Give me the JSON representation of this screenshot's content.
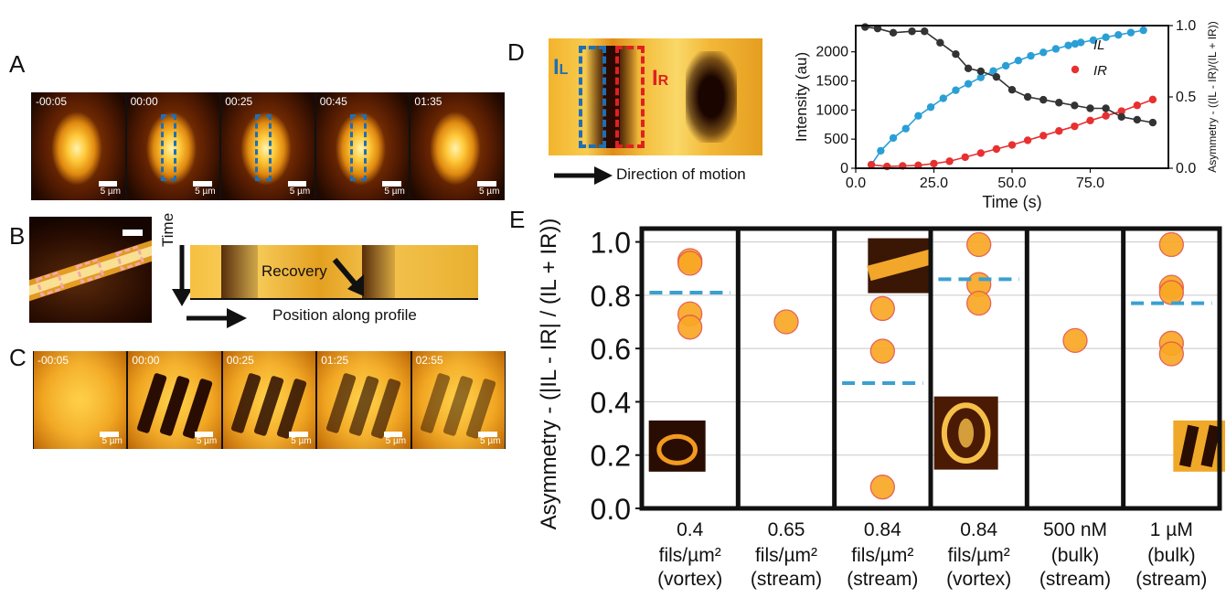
{
  "panels": {
    "A": {
      "label": "A",
      "timestamps": [
        "-00:05",
        "00:00",
        "00:25",
        "00:45",
        "01:35"
      ],
      "scale_label": "5 µm"
    },
    "B": {
      "label": "B",
      "time_label": "Time",
      "recovery_label": "Recovery",
      "position_label": "Position along profile"
    },
    "C": {
      "label": "C",
      "timestamps": [
        "-00:05",
        "00:00",
        "00:25",
        "01:25",
        "02:55"
      ],
      "scale_label": "5 µm"
    },
    "D": {
      "label": "D",
      "il_label": "IL",
      "ir_label": "IR",
      "direction_label": "Direction of motion"
    },
    "E": {
      "label": "E"
    }
  },
  "chart_data": [
    {
      "type": "scatter",
      "panel": "D",
      "xlabel": "Time (s)",
      "ylabel": "Intensity (au)",
      "y2label": "Asymmetry - ((IL - IR)/(IL + IR))",
      "xlim": [
        0,
        100
      ],
      "ylim": [
        0,
        2450
      ],
      "y2lim": [
        0,
        1.0
      ],
      "xticks": [
        0.0,
        25.0,
        50.0,
        75.0
      ],
      "xtick_labels": [
        "0.0",
        "25.0",
        "50.0",
        "75.0"
      ],
      "yticks": [
        0,
        500,
        1000,
        1500,
        2000
      ],
      "y2ticks": [
        0.0,
        0.5,
        1.0
      ],
      "y2tick_labels": [
        "0.0",
        "0.5",
        "1.0"
      ],
      "legend": {
        "position": "top-right",
        "entries": [
          "IL",
          "IR"
        ]
      },
      "series": [
        {
          "name": "IL",
          "axis": "left",
          "color": "#2a9fd6",
          "x": [
            5,
            8,
            12,
            16,
            20,
            24,
            28,
            32,
            36,
            40,
            44,
            48,
            52,
            56,
            60,
            64,
            68,
            72,
            76,
            80,
            84,
            88,
            92
          ],
          "y": [
            60,
            300,
            520,
            680,
            900,
            1050,
            1200,
            1340,
            1450,
            1560,
            1670,
            1760,
            1850,
            1930,
            1990,
            2050,
            2110,
            2160,
            2200,
            2250,
            2290,
            2330,
            2370
          ]
        },
        {
          "name": "IR",
          "axis": "left",
          "color": "#e83030",
          "x": [
            5,
            10,
            15,
            20,
            25,
            30,
            35,
            40,
            45,
            50,
            55,
            60,
            65,
            70,
            75,
            80,
            85,
            90,
            95
          ],
          "y": [
            60,
            30,
            40,
            50,
            80,
            120,
            190,
            260,
            330,
            400,
            480,
            560,
            640,
            720,
            820,
            900,
            980,
            1080,
            1180
          ]
        },
        {
          "name": "",
          "axis": "right",
          "color": "#333333",
          "x": [
            3,
            7,
            12,
            18,
            22,
            27,
            32,
            36,
            40,
            45,
            50,
            55,
            60,
            65,
            70,
            75,
            80,
            85,
            90,
            95
          ],
          "y": [
            0.99,
            0.98,
            0.95,
            0.96,
            0.96,
            0.88,
            0.8,
            0.7,
            0.68,
            0.64,
            0.55,
            0.5,
            0.48,
            0.46,
            0.44,
            0.42,
            0.42,
            0.36,
            0.34,
            0.32
          ]
        }
      ]
    },
    {
      "type": "scatter",
      "panel": "E",
      "ylabel": "Asymmetry - (|IL - IR| / (IL + IR))",
      "ylim": [
        0,
        1.05
      ],
      "yticks": [
        0.0,
        0.2,
        0.4,
        0.6,
        0.8,
        1.0
      ],
      "ytick_labels": [
        "0.0",
        "0.2",
        "0.4",
        "0.6",
        "0.8",
        "1.0"
      ],
      "grid": true,
      "categories": [
        {
          "line1": "0.4",
          "line2": "fils/µm²",
          "line3": "(vortex)",
          "points": [
            0.93,
            0.92,
            0.73,
            0.68
          ],
          "mean": 0.81,
          "thumb": "ring"
        },
        {
          "line1": "0.65",
          "line2": "fils/µm²",
          "line3": "(stream)",
          "points": [
            0.7
          ],
          "mean": null,
          "thumb": ""
        },
        {
          "line1": "0.84",
          "line2": "fils/µm²",
          "line3": "(stream)",
          "points": [
            0.75,
            0.59,
            0.08
          ],
          "mean": 0.47,
          "thumb": "stripes-top"
        },
        {
          "line1": "0.84",
          "line2": "fils/µm²",
          "line3": "(vortex)",
          "points": [
            0.99,
            0.84,
            0.77
          ],
          "mean": 0.86,
          "thumb": "vortex"
        },
        {
          "line1": "500 nM",
          "line2": "(bulk)",
          "line3": "(stream)",
          "points": [
            0.63
          ],
          "mean": null,
          "thumb": ""
        },
        {
          "line1": "1 µM",
          "line2": "(bulk)",
          "line3": "(stream)",
          "points": [
            0.99,
            0.83,
            0.81,
            0.62,
            0.58
          ],
          "mean": 0.77,
          "thumb": "bars"
        }
      ],
      "marker_color": "#f9a825",
      "marker_edge": "#e2574c",
      "mean_color": "#3aa0d0"
    }
  ]
}
